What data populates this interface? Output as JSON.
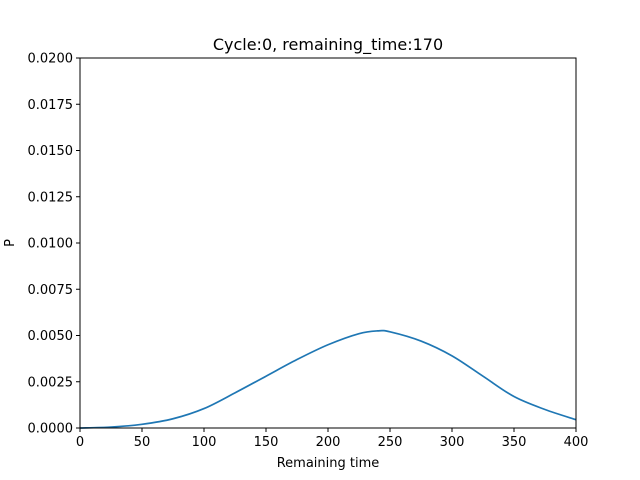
{
  "chart_data": {
    "type": "line",
    "title": "Cycle:0, remaining_time:170",
    "xlabel": "Remaining time",
    "ylabel": "P",
    "xlim": [
      0,
      400
    ],
    "ylim": [
      0,
      0.02
    ],
    "xticks": [
      0,
      50,
      100,
      150,
      200,
      250,
      300,
      350,
      400
    ],
    "xtick_labels": [
      "0",
      "50",
      "100",
      "150",
      "200",
      "250",
      "300",
      "350",
      "400"
    ],
    "yticks": [
      0,
      0.0025,
      0.005,
      0.0075,
      0.01,
      0.0125,
      0.015,
      0.0175,
      0.02
    ],
    "ytick_labels": [
      "0.0000",
      "0.0025",
      "0.0050",
      "0.0075",
      "0.0100",
      "0.0125",
      "0.0150",
      "0.0175",
      "0.0200"
    ],
    "grid": false,
    "colors": {
      "line": "#1f77b4",
      "axes": "#000000"
    },
    "series": [
      {
        "x": [
          0,
          25,
          50,
          75,
          100,
          125,
          150,
          175,
          200,
          225,
          240,
          250,
          275,
          300,
          325,
          350,
          375,
          400
        ],
        "values": [
          0.0,
          5e-05,
          0.0002,
          0.0005,
          0.00105,
          0.0019,
          0.0028,
          0.0037,
          0.0045,
          0.0051,
          0.00525,
          0.0052,
          0.0047,
          0.0039,
          0.0028,
          0.0017,
          0.001,
          0.00045
        ]
      }
    ]
  }
}
